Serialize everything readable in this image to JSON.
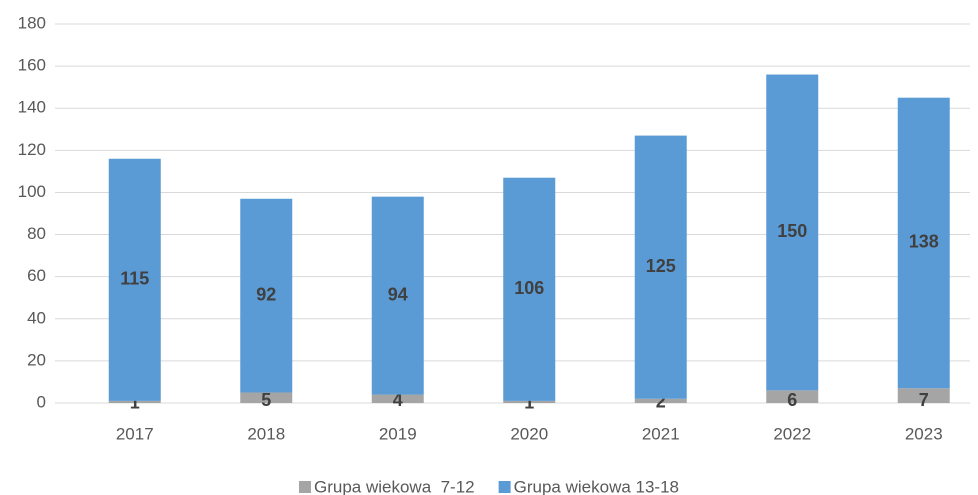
{
  "chart_data": {
    "type": "stacked_bar",
    "categories": [
      "2017",
      "2018",
      "2019",
      "2020",
      "2021",
      "2022",
      "2023"
    ],
    "series": [
      {
        "name": "Grupa wiekowa  7-12",
        "color": "#a5a5a5",
        "values": [
          1,
          5,
          4,
          1,
          2,
          6,
          7
        ]
      },
      {
        "name": "Grupa wiekowa 13-18",
        "color": "#5b9bd5",
        "values": [
          115,
          92,
          94,
          106,
          125,
          150,
          138
        ]
      }
    ],
    "ylim": [
      0,
      180
    ],
    "yticks": [
      0,
      20,
      40,
      60,
      80,
      100,
      120,
      140,
      160,
      180
    ],
    "grid": true,
    "legend": "bottom"
  }
}
